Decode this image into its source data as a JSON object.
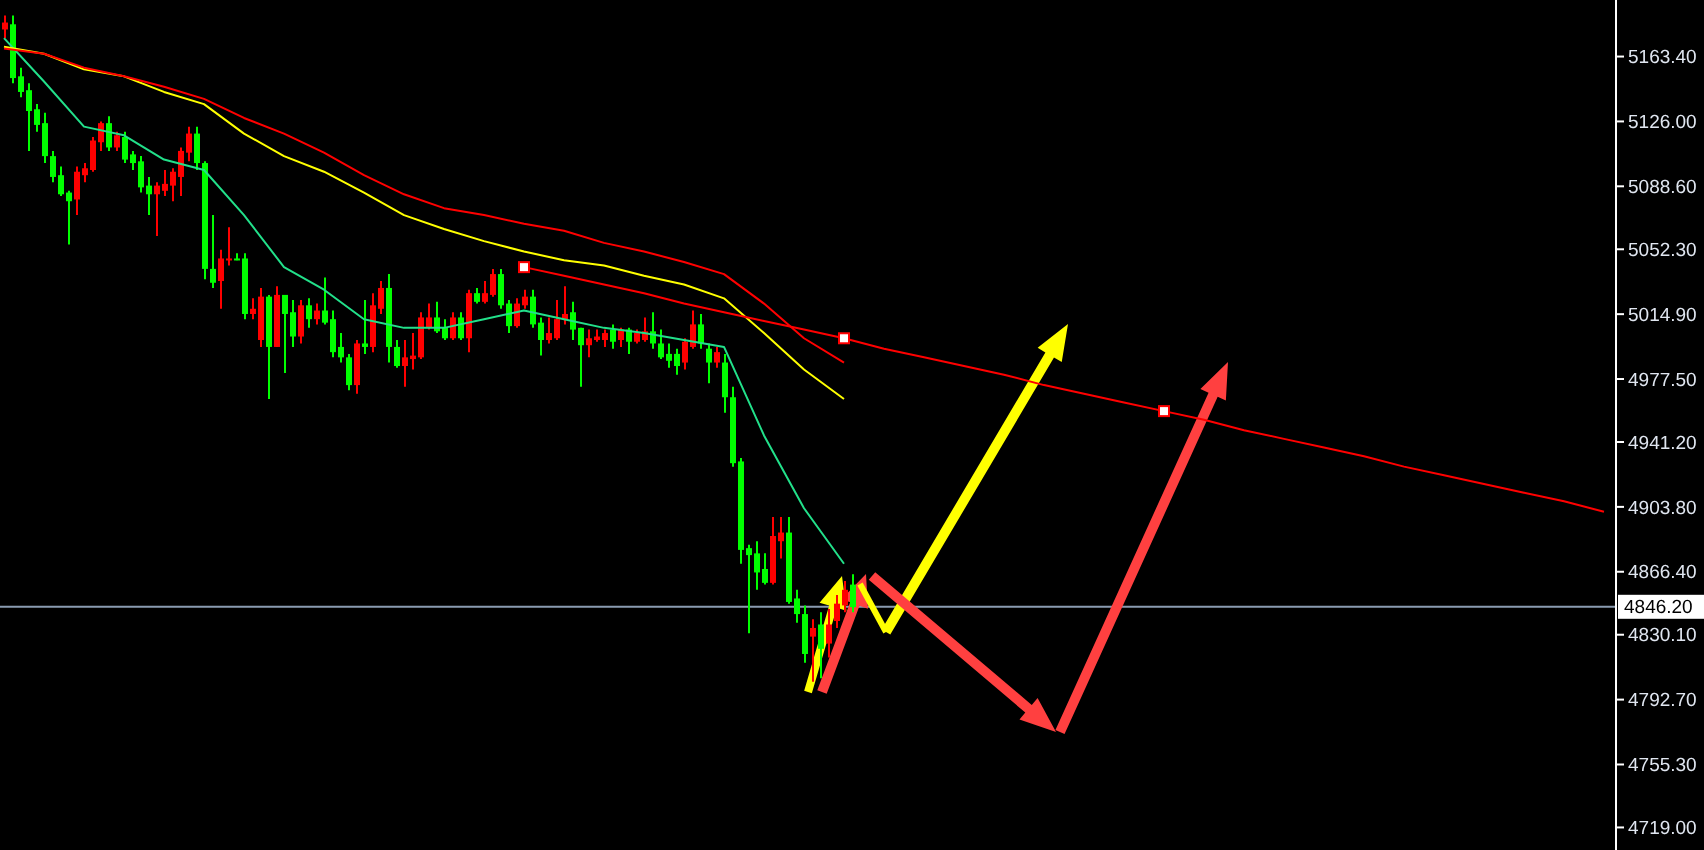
{
  "chart_data": [
    {
      "type": "candlestick",
      "categories": [
        null,
        null,
        null,
        null,
        null,
        null,
        null,
        null,
        null,
        null,
        null,
        null,
        null,
        null,
        null,
        null,
        null,
        null,
        null,
        null,
        null,
        null,
        null,
        null,
        null,
        null,
        null,
        null,
        null,
        null,
        null,
        null,
        null,
        null,
        null,
        null,
        null,
        null,
        null,
        null,
        null,
        null,
        null,
        null,
        null,
        null,
        null,
        null,
        null,
        null,
        null,
        null,
        null,
        null,
        null,
        null,
        null,
        null,
        null,
        null,
        null,
        null,
        null,
        null,
        null,
        null,
        null,
        null,
        null,
        null,
        null,
        null,
        null,
        null,
        null,
        null,
        null,
        null,
        null,
        null,
        null,
        null,
        null,
        null,
        null,
        null,
        null,
        null,
        null,
        null,
        null,
        null,
        null,
        null,
        null,
        null,
        null,
        null,
        null,
        null,
        null,
        null,
        null,
        null,
        null,
        null,
        null,
        null,
        null,
        null,
        null,
        null,
        null,
        null,
        null,
        null,
        null,
        null,
        null,
        null,
        null,
        null,
        null,
        null,
        null,
        null,
        null,
        null,
        null,
        null,
        null,
        null,
        null,
        null,
        null,
        null,
        null,
        null,
        null,
        null,
        null,
        null,
        null,
        null,
        null,
        null,
        null,
        null,
        null,
        null,
        null,
        null,
        null,
        null,
        null,
        null,
        null,
        null,
        null,
        null,
        null,
        null,
        null,
        null,
        null,
        null,
        null,
        null,
        null,
        null,
        null,
        null,
        null,
        null,
        null,
        null,
        null,
        null,
        null,
        null,
        null,
        null,
        null,
        null,
        null,
        null,
        null,
        null,
        null,
        null,
        null,
        null,
        null,
        null,
        null,
        null,
        null,
        null,
        null,
        null,
        null,
        null
      ],
      "ohlc": [
        [
          5179,
          5187,
          5174,
          5183
        ],
        [
          5182,
          5187,
          5148,
          5151
        ],
        [
          5152,
          5157,
          5140,
          5143
        ],
        [
          5144,
          5148,
          5109,
          5132
        ],
        [
          5133,
          5136,
          5120,
          5124
        ],
        [
          5125,
          5131,
          5102,
          5106
        ],
        [
          5106,
          5109,
          5091,
          5094
        ],
        [
          5095,
          5100,
          5083,
          5084
        ],
        [
          5085,
          5086,
          5055,
          5080
        ],
        [
          5081,
          5100,
          5072,
          5097
        ],
        [
          5095,
          5102,
          5091,
          5099
        ],
        [
          5098,
          5117,
          5097,
          5115
        ],
        [
          5114,
          5126,
          5109,
          5125
        ],
        [
          5125,
          5129,
          5109,
          5111
        ],
        [
          5111,
          5120,
          5109,
          5118
        ],
        [
          5117,
          5120,
          5102,
          5104
        ],
        [
          5107,
          5109,
          5098,
          5102
        ],
        [
          5103,
          5106,
          5085,
          5088
        ],
        [
          5089,
          5094,
          5072,
          5084
        ],
        [
          5084,
          5091,
          5060,
          5089
        ],
        [
          5086,
          5098,
          5083,
          5090
        ],
        [
          5089,
          5099,
          5080,
          5097
        ],
        [
          5094,
          5111,
          5083,
          5109
        ],
        [
          5108,
          5123,
          5103,
          5119
        ],
        [
          5119,
          5123,
          5098,
          5102
        ],
        [
          5102,
          5103,
          5035,
          5041
        ],
        [
          5041,
          5072,
          5030,
          5033
        ],
        [
          5034,
          5052,
          5018,
          5047
        ],
        [
          5046,
          5065,
          5043,
          5047
        ],
        [
          5047,
          5050,
          5046,
          5046
        ],
        [
          5047,
          5050,
          5012,
          5015
        ],
        [
          5015,
          5024,
          5012,
          5018
        ],
        [
          5000,
          5030,
          4996,
          5025
        ],
        [
          5025,
          5026,
          4966,
          4996
        ],
        [
          4996,
          5031,
          4996,
          5026
        ],
        [
          5026,
          5026,
          4981,
          5015
        ],
        [
          5016,
          5023,
          4996,
          5002
        ],
        [
          5002,
          5023,
          4998,
          5020
        ],
        [
          5020,
          5024,
          5007,
          5012
        ],
        [
          5012,
          5021,
          5009,
          5017
        ],
        [
          5017,
          5036,
          5009,
          5010
        ],
        [
          5012,
          5017,
          4990,
          4993
        ],
        [
          4996,
          5004,
          4987,
          4990
        ],
        [
          4990,
          4992,
          4971,
          4974
        ],
        [
          4974,
          5000,
          4969,
          4998
        ],
        [
          4998,
          5023,
          4992,
          4996
        ],
        [
          4996,
          5027,
          4993,
          5020
        ],
        [
          5018,
          5034,
          5015,
          5030
        ],
        [
          5030,
          5038,
          4987,
          4996
        ],
        [
          4996,
          5000,
          4984,
          4985
        ],
        [
          4985,
          5000,
          4973,
          4990
        ],
        [
          4989,
          5004,
          4983,
          4991
        ],
        [
          4990,
          5016,
          4989,
          5013
        ],
        [
          5007,
          5021,
          5006,
          5013
        ],
        [
          5013,
          5022,
          5004,
          5005
        ],
        [
          5007,
          5012,
          5000,
          5001
        ],
        [
          5001,
          5016,
          5000,
          5013
        ],
        [
          5013,
          5016,
          5000,
          5001
        ],
        [
          5001,
          5029,
          4993,
          5027
        ],
        [
          5027,
          5030,
          5021,
          5022
        ],
        [
          5022,
          5034,
          5021,
          5027
        ],
        [
          5026,
          5041,
          5025,
          5038
        ],
        [
          5038,
          5041,
          5018,
          5020
        ],
        [
          5021,
          5023,
          5004,
          5008
        ],
        [
          5008,
          5024,
          5007,
          5021
        ],
        [
          5020,
          5029,
          5018,
          5025
        ],
        [
          5025,
          5029,
          5007,
          5009
        ],
        [
          5010,
          5013,
          4991,
          5000
        ],
        [
          5000,
          5013,
          4998,
          5004
        ],
        [
          5001,
          5023,
          5000,
          5012
        ],
        [
          5012,
          5031,
          5009,
          5015
        ],
        [
          5016,
          5022,
          5000,
          5006
        ],
        [
          5007,
          5007,
          4973,
          4997
        ],
        [
          4997,
          5006,
          4990,
          5001
        ],
        [
          5000,
          5006,
          4999,
          5002
        ],
        [
          5000,
          5006,
          4996,
          5004
        ],
        [
          5006,
          5009,
          4995,
          4999
        ],
        [
          5000,
          5007,
          4996,
          5006
        ],
        [
          5006,
          5007,
          4992,
          4999
        ],
        [
          4999,
          5006,
          4998,
          5004
        ],
        [
          5000,
          5013,
          4999,
          5005
        ],
        [
          5005,
          5016,
          4995,
          4998
        ],
        [
          4998,
          5006,
          4989,
          4990
        ],
        [
          4992,
          4998,
          4984,
          4988
        ],
        [
          4992,
          4995,
          4980,
          4985
        ],
        [
          4987,
          5001,
          4983,
          4999
        ],
        [
          4996,
          5017,
          4995,
          5009
        ],
        [
          5009,
          5015,
          4995,
          4998
        ],
        [
          4995,
          4998,
          4975,
          4987
        ],
        [
          4987,
          4996,
          4984,
          4993
        ],
        [
          4987,
          4992,
          4958,
          4967
        ],
        [
          4967,
          4973,
          4927,
          4929
        ],
        [
          4930,
          4932,
          4871,
          4879
        ],
        [
          4880,
          4882,
          4831,
          4876
        ],
        [
          4877,
          4884,
          4856,
          4866
        ],
        [
          4868,
          4877,
          4859,
          4860
        ],
        [
          4860,
          4898,
          4859,
          4887
        ],
        [
          4884,
          4898,
          4874,
          4889
        ],
        [
          4889,
          4898,
          4848,
          4849
        ],
        [
          4851,
          4856,
          4837,
          4842
        ],
        [
          4842,
          4847,
          4814,
          4819
        ],
        [
          4829,
          4839,
          4803,
          4834
        ],
        [
          4836,
          4843,
          4805,
          4822
        ],
        [
          4825,
          4845,
          4817,
          4836
        ],
        [
          4838,
          4853,
          4834,
          4848
        ],
        [
          4847,
          4861,
          4843,
          4856
        ],
        [
          4859,
          4865,
          4843,
          4846
        ],
        null,
        null,
        null,
        null,
        null,
        null,
        null,
        null,
        null,
        null,
        null,
        null,
        null,
        null,
        null,
        null,
        null,
        null,
        null,
        null,
        null,
        null,
        null,
        null,
        null,
        null,
        null,
        null,
        null,
        null,
        null,
        null,
        null,
        null,
        null,
        null,
        null,
        null,
        null,
        null,
        null,
        null,
        null,
        null,
        null,
        null,
        null,
        null,
        null,
        null,
        null,
        null,
        null,
        null,
        null,
        null,
        null,
        null,
        null,
        null,
        null,
        null,
        null,
        null,
        null,
        null,
        null,
        null,
        null,
        null,
        null,
        null,
        null,
        null,
        null,
        null,
        null,
        null,
        null,
        null,
        null,
        null,
        null,
        null,
        null,
        null,
        null,
        null,
        null,
        null,
        null,
        null,
        null,
        null,
        null
      ],
      "colors": [
        "#ff0000",
        "#00ff00",
        "#00ff00",
        "#00ff00",
        "#00ff00",
        "#00ff00",
        "#00ff00",
        "#00ff00",
        "#00ff00",
        "#ff0000",
        "#ff0000",
        "#ff0000",
        "#ff0000",
        "#00ff00",
        "#ff0000",
        "#00ff00",
        "#00ff00",
        "#00ff00",
        "#00ff00",
        "#ff0000",
        "#ff0000",
        "#ff0000",
        "#ff0000",
        "#ff0000",
        "#00ff00",
        "#00ff00",
        "#00ff00",
        "#ff0000",
        "#ff0000",
        "#00ff00",
        "#00ff00",
        "#ff0000",
        "#ff0000",
        "#00ff00",
        "#ff0000",
        "#00ff00",
        "#00ff00",
        "#ff0000",
        "#00ff00",
        "#ff0000",
        "#00ff00",
        "#00ff00",
        "#00ff00",
        "#00ff00",
        "#ff0000",
        "#00ff00",
        "#ff0000",
        "#ff0000",
        "#00ff00",
        "#00ff00",
        "#ff0000",
        "#ff0000",
        "#ff0000",
        "#ff0000",
        "#00ff00",
        "#00ff00",
        "#ff0000",
        "#00ff00",
        "#ff0000",
        "#00ff00",
        "#ff0000",
        "#ff0000",
        "#00ff00",
        "#00ff00",
        "#ff0000",
        "#ff0000",
        "#00ff00",
        "#00ff00",
        "#ff0000",
        "#ff0000",
        "#ff0000",
        "#00ff00",
        "#00ff00",
        "#ff0000",
        "#ff0000",
        "#ff0000",
        "#00ff00",
        "#ff0000",
        "#00ff00",
        "#ff0000",
        "#ff0000",
        "#00ff00",
        "#00ff00",
        "#00ff00",
        "#00ff00",
        "#ff0000",
        "#ff0000",
        "#00ff00",
        "#00ff00",
        "#ff0000",
        "#00ff00",
        "#00ff00",
        "#00ff00",
        "#00ff00",
        "#00ff00",
        "#00ff00",
        "#ff0000",
        "#ff0000",
        "#00ff00",
        "#00ff00",
        "#00ff00",
        "#ff0000",
        "#00ff00",
        "#ff0000",
        "#ff0000",
        "#ff0000",
        "#00ff00",
        null,
        null,
        null,
        null,
        null,
        null,
        null,
        null,
        null,
        null,
        null,
        null,
        null,
        null,
        null,
        null,
        null,
        null,
        null,
        null,
        null,
        null,
        null,
        null,
        null,
        null,
        null,
        null,
        null,
        null,
        null,
        null,
        null,
        null,
        null,
        null,
        null,
        null,
        null,
        null,
        null,
        null,
        null,
        null,
        null,
        null,
        null,
        null,
        null,
        null,
        null,
        null,
        null,
        null,
        null,
        null,
        null,
        null,
        null,
        null,
        null,
        null,
        null,
        null,
        null,
        null,
        null,
        null,
        null,
        null,
        null,
        null,
        null,
        null,
        null,
        null,
        null,
        null,
        null,
        null,
        null,
        null,
        null,
        null,
        null,
        null,
        null,
        null,
        null,
        null,
        null,
        null,
        null,
        null,
        null
      ],
      "ylim": [
        4706,
        5196
      ],
      "yticks": [
        {
          "value": 5163.4,
          "label": "5163.40"
        },
        {
          "value": 5126,
          "label": "5126.00"
        },
        {
          "value": 5088.6,
          "label": "5088.60"
        },
        {
          "value": 5052.3,
          "label": "5052.30"
        },
        {
          "value": 5014.9,
          "label": "5014.90"
        },
        {
          "value": 4977.5,
          "label": "4977.50"
        },
        {
          "value": 4941.2,
          "label": "4941.20"
        },
        {
          "value": 4903.8,
          "label": "4903.80"
        },
        {
          "value": 4866.4,
          "label": "4866.40"
        },
        {
          "value": 4830.1,
          "label": "4830.10"
        },
        {
          "value": 4792.7,
          "label": "4792.70"
        },
        {
          "value": 4755.3,
          "label": "4755.30"
        },
        {
          "value": 4719,
          "label": "4719.00"
        }
      ],
      "ref_lines": [
        {
          "axis": "y",
          "value": 4846.2,
          "label": "4846.20",
          "color": "#8a9bb0"
        }
      ],
      "tick_labels": "y"
    },
    {
      "type": "line",
      "categories": [
        null,
        null,
        null,
        null,
        null,
        null,
        null,
        null,
        null,
        null,
        null,
        null,
        null,
        null,
        null,
        null,
        null,
        null,
        null,
        null,
        null,
        null,
        null,
        null,
        null,
        null,
        null,
        null,
        null,
        null,
        null,
        null,
        null,
        null,
        null,
        null,
        null,
        null,
        null,
        null,
        null
      ],
      "series": [
        {
          "color": "#22e08a",
          "values": [
            5174,
            5149,
            5123,
            5118,
            5104,
            5098,
            5072,
            5042,
            5029,
            5012,
            5007,
            5007,
            5012,
            5017,
            5012,
            5007,
            5004,
            5000,
            4996,
            4945,
            4903,
            4871,
            null,
            null,
            null,
            null,
            null,
            null,
            null,
            null,
            null,
            null,
            null,
            null,
            null,
            null,
            null,
            null,
            null,
            null,
            null
          ]
        },
        {
          "color": "#ffff00",
          "values": [
            5169,
            5165,
            5156,
            5152,
            5143,
            5136,
            5119,
            5106,
            5097,
            5085,
            5072,
            5064,
            5057,
            5051,
            5046,
            5043,
            5037,
            5032,
            5024,
            5004,
            4983,
            4966,
            null,
            null,
            null,
            null,
            null,
            null,
            null,
            null,
            null,
            null,
            null,
            null,
            null,
            null,
            null,
            null,
            null,
            null,
            null
          ]
        },
        {
          "color": "#ff0000",
          "values": [
            5168,
            5165,
            5157,
            5152,
            5146,
            5139,
            5128,
            5119,
            5108,
            5095,
            5084,
            5076,
            5072,
            5067,
            5063,
            5056,
            5051,
            5045,
            5038,
            5021,
            5001,
            4987,
            null,
            null,
            null,
            null,
            null,
            null,
            null,
            null,
            null,
            null,
            null,
            null,
            null,
            null,
            null,
            null,
            null,
            null,
            null
          ]
        },
        {
          "color": "#ff0000",
          "values": [
            null,
            null,
            null,
            null,
            null,
            null,
            null,
            null,
            null,
            null,
            null,
            null,
            null,
            5042,
            5037,
            5032,
            5027,
            5021,
            5016,
            5011,
            5006,
            5001,
            4995,
            4990,
            4985,
            4980,
            4974,
            4969,
            4964,
            4959,
            4954,
            4948,
            4943,
            4938,
            4933,
            4927,
            4922,
            4917,
            4912,
            4907,
            4901
          ]
        }
      ],
      "ylim": [
        4706,
        5196
      ],
      "tick_labels": false
    }
  ]
}
